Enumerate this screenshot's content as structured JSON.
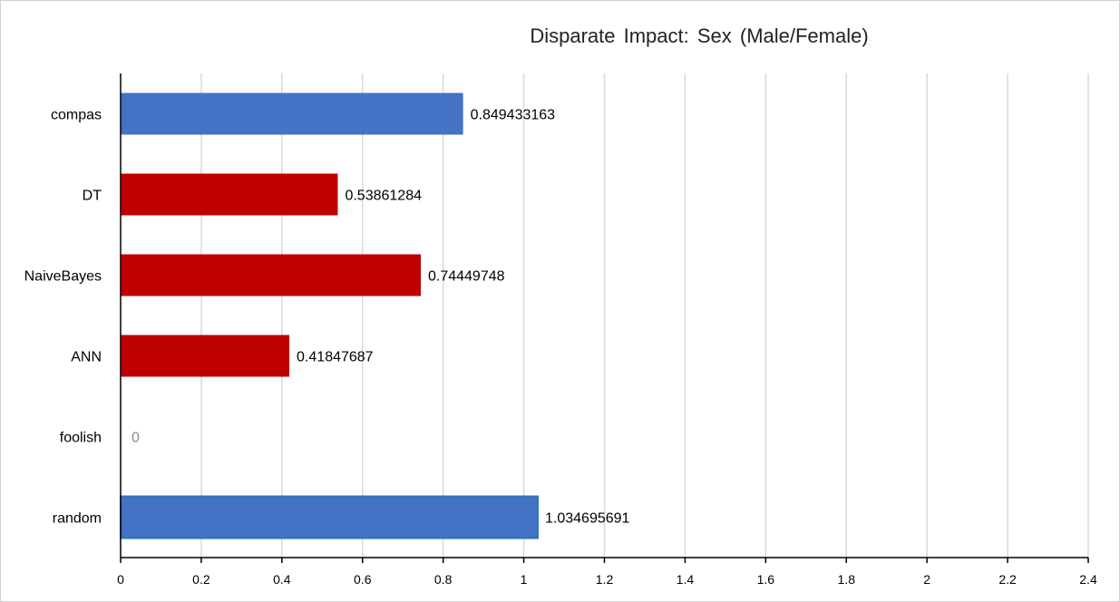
{
  "chart_data": {
    "type": "bar",
    "orientation": "horizontal",
    "title": "Disparate Impact: Sex (Male/Female)",
    "categories": [
      "compas",
      "DT",
      "NaiveBayes",
      "ANN",
      "foolish",
      "random"
    ],
    "values": [
      0.849433163,
      0.53861284,
      0.74449748,
      0.41847687,
      0,
      1.034695691
    ],
    "value_labels": [
      "0.849433163",
      "0.53861284",
      "0.74449748",
      "0.41847687",
      "0",
      "1.034695691"
    ],
    "bar_colors": [
      "#4472c4",
      "#c00000",
      "#c00000",
      "#c00000",
      "#c00000",
      "#4472c4"
    ],
    "xlim": [
      0,
      2.4
    ],
    "xticks": [
      0,
      0.2,
      0.4,
      0.6,
      0.8,
      1,
      1.2,
      1.4,
      1.6,
      1.8,
      2,
      2.2,
      2.4
    ],
    "xtick_labels": [
      "0",
      "0.2",
      "0.4",
      "0.6",
      "0.8",
      "1",
      "1.2",
      "1.4",
      "1.6",
      "1.8",
      "2",
      "2.2",
      "2.4"
    ],
    "grid": true,
    "legend": "none"
  }
}
